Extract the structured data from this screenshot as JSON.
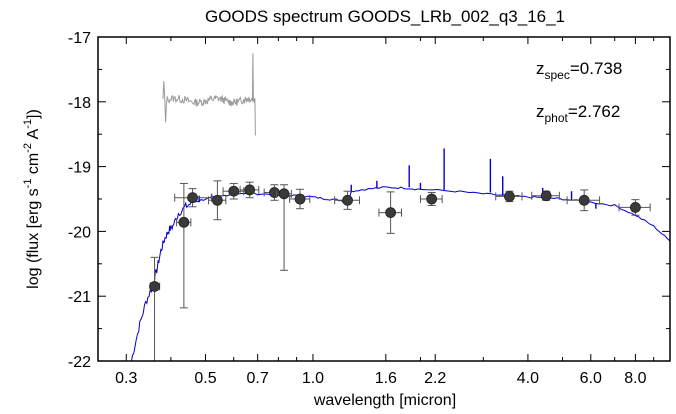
{
  "chart_data": {
    "type": "scatter",
    "title": "GOODS spectrum GOODS_LRb_002_q3_16_1",
    "xlabel": "wavelength [micron]",
    "ylabel_parts": {
      "base": "log (flux [erg s",
      "e1": "-1",
      "mid1": " cm",
      "e2": "-2",
      "mid2": " A",
      "e3": "-1",
      "end": "])"
    },
    "x_scale": "log",
    "xlim": [
      0.25,
      10.0
    ],
    "ylim": [
      -22,
      -17
    ],
    "x_ticks": [
      0.3,
      0.5,
      0.7,
      1.0,
      1.6,
      2.2,
      4.0,
      6.0,
      8.0
    ],
    "x_tick_labels": [
      "0.3",
      "0.5",
      "0.7",
      "1.0",
      "1.6",
      "2.2",
      "4.0",
      "6.0",
      "8.0"
    ],
    "y_ticks": [
      -22,
      -21,
      -20,
      -19,
      -18,
      -17
    ],
    "y_tick_labels": [
      "-22",
      "-21",
      "-20",
      "-19",
      "-18",
      "-17"
    ],
    "grid": false,
    "annotations": [
      {
        "name": "z-spec",
        "sym": "z",
        "sub": "spec",
        "val": "=0.738"
      },
      {
        "name": "z-phot",
        "sym": "z",
        "sub": "phot",
        "val": "=2.762"
      }
    ],
    "photometry": [
      {
        "x": 0.36,
        "y": -20.85,
        "xerr_lo": 0.01,
        "xerr_hi": 0.012,
        "yerr_lo": 1.25,
        "yerr_hi": 0.45
      },
      {
        "x": 0.435,
        "y": -19.86,
        "xerr_lo": 0.02,
        "xerr_hi": 0.02,
        "yerr_lo": 1.32,
        "yerr_hi": 0.6
      },
      {
        "x": 0.46,
        "y": -19.48,
        "xerr_lo": 0.05,
        "xerr_hi": 0.06,
        "yerr_lo": 0.14,
        "yerr_hi": 0.14
      },
      {
        "x": 0.54,
        "y": -19.52,
        "xerr_lo": 0.03,
        "xerr_hi": 0.03,
        "yerr_lo": 0.3,
        "yerr_hi": 0.3
      },
      {
        "x": 0.6,
        "y": -19.38,
        "xerr_lo": 0.04,
        "xerr_hi": 0.04,
        "yerr_lo": 0.12,
        "yerr_hi": 0.12
      },
      {
        "x": 0.665,
        "y": -19.36,
        "xerr_lo": 0.04,
        "xerr_hi": 0.04,
        "yerr_lo": 0.12,
        "yerr_hi": 0.12
      },
      {
        "x": 0.78,
        "y": -19.4,
        "xerr_lo": 0.05,
        "xerr_hi": 0.05,
        "yerr_lo": 0.12,
        "yerr_hi": 0.12
      },
      {
        "x": 0.83,
        "y": -19.42,
        "xerr_lo": 0.04,
        "xerr_hi": 0.04,
        "yerr_lo": 1.18,
        "yerr_hi": 0.14
      },
      {
        "x": 0.92,
        "y": -19.5,
        "xerr_lo": 0.06,
        "xerr_hi": 0.06,
        "yerr_lo": 0.15,
        "yerr_hi": 0.15
      },
      {
        "x": 1.25,
        "y": -19.52,
        "xerr_lo": 0.1,
        "xerr_hi": 0.1,
        "yerr_lo": 0.14,
        "yerr_hi": 0.14
      },
      {
        "x": 1.65,
        "y": -19.71,
        "xerr_lo": 0.12,
        "xerr_hi": 0.12,
        "yerr_lo": 0.32,
        "yerr_hi": 0.32
      },
      {
        "x": 2.15,
        "y": -19.5,
        "xerr_lo": 0.15,
        "xerr_hi": 0.15,
        "yerr_lo": 0.1,
        "yerr_hi": 0.1
      },
      {
        "x": 3.55,
        "y": -19.46,
        "xerr_lo": 0.3,
        "xerr_hi": 0.3,
        "yerr_lo": 0.08,
        "yerr_hi": 0.08
      },
      {
        "x": 4.5,
        "y": -19.45,
        "xerr_lo": 0.4,
        "xerr_hi": 0.4,
        "yerr_lo": 0.07,
        "yerr_hi": 0.07
      },
      {
        "x": 5.75,
        "y": -19.52,
        "xerr_lo": 0.6,
        "xerr_hi": 0.6,
        "yerr_lo": 0.16,
        "yerr_hi": 0.16
      },
      {
        "x": 8.0,
        "y": -19.63,
        "xerr_lo": 0.8,
        "xerr_hi": 0.8,
        "yerr_lo": 0.12,
        "yerr_hi": 0.12
      }
    ],
    "model_sed": {
      "color": "#0000cc",
      "points": [
        [
          0.31,
          -22.0
        ],
        [
          0.325,
          -21.5
        ],
        [
          0.34,
          -21.1
        ],
        [
          0.355,
          -20.85
        ],
        [
          0.365,
          -20.6
        ],
        [
          0.375,
          -20.3
        ],
        [
          0.385,
          -20.1
        ],
        [
          0.395,
          -19.98
        ],
        [
          0.405,
          -19.92
        ],
        [
          0.42,
          -19.72
        ],
        [
          0.44,
          -19.62
        ],
        [
          0.46,
          -19.55
        ],
        [
          0.5,
          -19.5
        ],
        [
          0.55,
          -19.46
        ],
        [
          0.6,
          -19.42
        ],
        [
          0.7,
          -19.42
        ],
        [
          0.8,
          -19.43
        ],
        [
          0.9,
          -19.45
        ],
        [
          1.0,
          -19.47
        ],
        [
          1.1,
          -19.5
        ],
        [
          1.2,
          -19.52
        ],
        [
          1.25,
          -19.56
        ],
        [
          1.28,
          -19.38
        ],
        [
          1.4,
          -19.35
        ],
        [
          1.6,
          -19.32
        ],
        [
          1.8,
          -19.33
        ],
        [
          2.0,
          -19.35
        ],
        [
          2.5,
          -19.38
        ],
        [
          3.0,
          -19.42
        ],
        [
          3.5,
          -19.45
        ],
        [
          4.0,
          -19.47
        ],
        [
          4.5,
          -19.48
        ],
        [
          5.0,
          -19.5
        ],
        [
          6.0,
          -19.55
        ],
        [
          7.0,
          -19.6
        ],
        [
          8.0,
          -19.75
        ],
        [
          9.0,
          -19.92
        ],
        [
          10.0,
          -20.15
        ]
      ],
      "lines": [
        [
          0.48,
          -19.55,
          -19.45
        ],
        [
          0.52,
          -19.5,
          -19.42
        ],
        [
          1.28,
          -19.4,
          -19.28
        ],
        [
          1.51,
          -19.33,
          -19.22
        ],
        [
          1.86,
          -19.32,
          -18.98
        ],
        [
          2.0,
          -19.35,
          -19.25
        ],
        [
          2.33,
          -19.36,
          -18.72
        ],
        [
          3.14,
          -19.4,
          -18.88
        ],
        [
          3.4,
          -19.44,
          -19.15
        ],
        [
          4.4,
          -19.48,
          -19.33
        ],
        [
          5.3,
          -19.52,
          -19.38
        ],
        [
          6.2,
          -19.56,
          -19.65
        ]
      ]
    },
    "observed_spectrum": {
      "color": "#999999",
      "x_range": [
        0.38,
        0.69
      ],
      "level": -17.98,
      "scatter": 0.06,
      "features": [
        [
          0.38,
          -17.68
        ],
        [
          0.385,
          -18.32
        ],
        [
          0.68,
          -17.25
        ],
        [
          0.69,
          -18.52
        ]
      ]
    }
  }
}
